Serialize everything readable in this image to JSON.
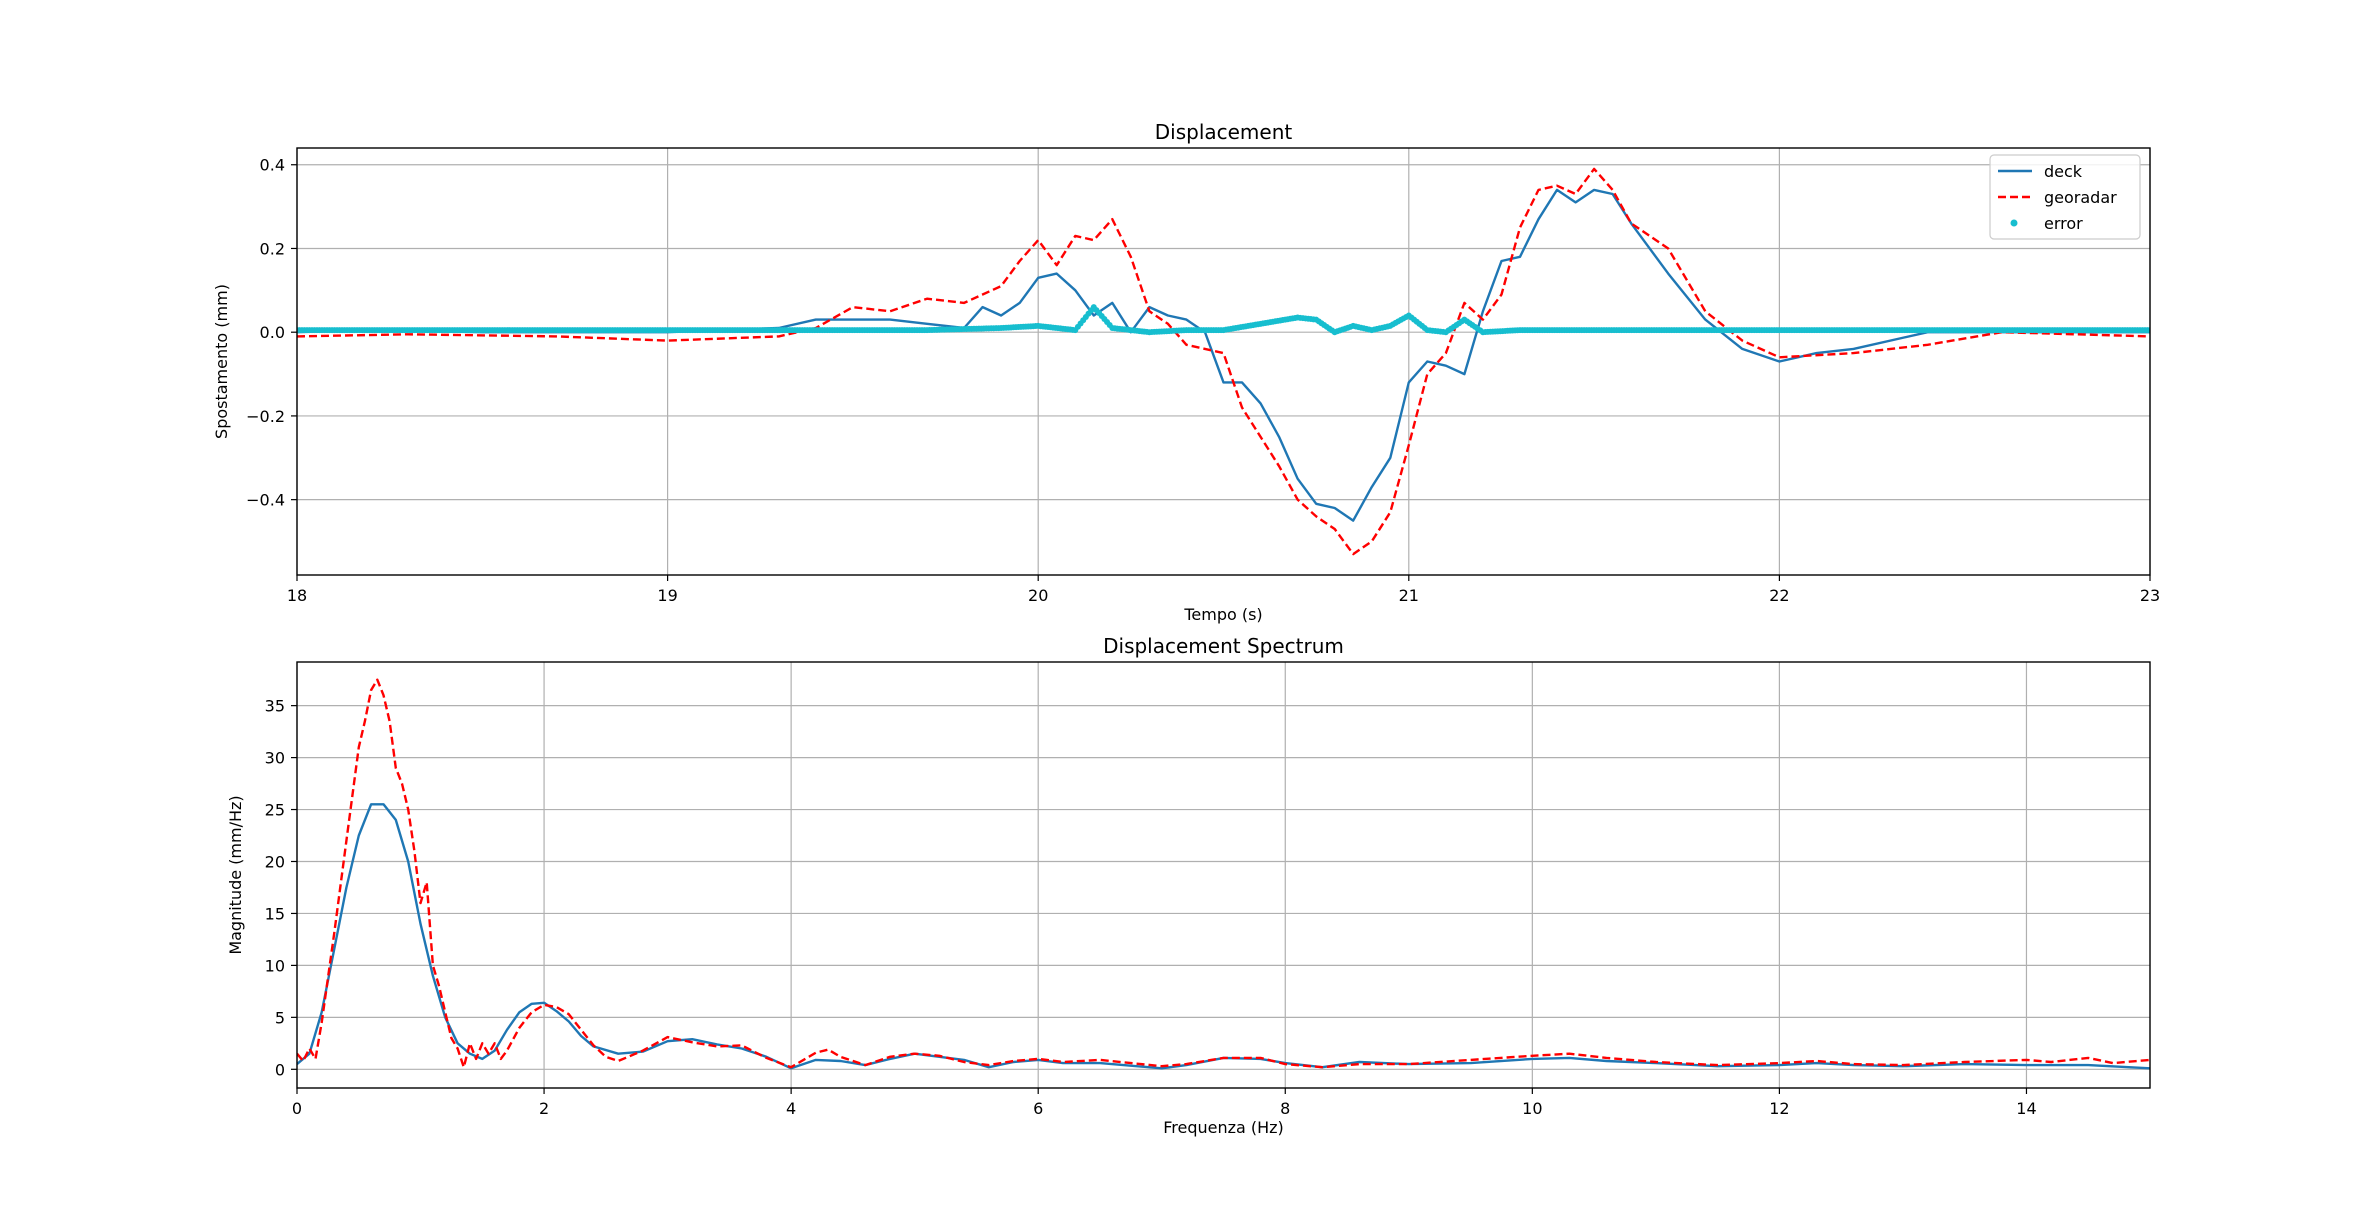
{
  "colors": {
    "deck": "#1f77b4",
    "georadar": "#ff0000",
    "error": "#17becf",
    "grid": "#b0b0b0"
  },
  "chart_data": [
    {
      "type": "line",
      "title": "Displacement",
      "xlabel": "Tempo (s)",
      "ylabel": "Spostamento (mm)",
      "xlim": [
        18,
        23
      ],
      "ylim": [
        -0.58,
        0.44
      ],
      "xticks": [
        18,
        19,
        20,
        21,
        22,
        23
      ],
      "xtick_labels": [
        "18",
        "19",
        "20",
        "21",
        "22",
        "23"
      ],
      "yticks": [
        -0.4,
        -0.2,
        0.0,
        0.2,
        0.4
      ],
      "ytick_labels": [
        "−0.4",
        "−0.2",
        "0.0",
        "0.2",
        "0.4"
      ],
      "grid": true,
      "legend_position": "top-right",
      "series": [
        {
          "name": "deck",
          "style": "solid",
          "x": [
            18.0,
            18.2,
            18.5,
            19.0,
            19.3,
            19.4,
            19.5,
            19.6,
            19.7,
            19.8,
            19.85,
            19.9,
            19.95,
            20.0,
            20.05,
            20.1,
            20.15,
            20.2,
            20.25,
            20.3,
            20.35,
            20.4,
            20.45,
            20.5,
            20.55,
            20.6,
            20.65,
            20.7,
            20.75,
            20.8,
            20.85,
            20.9,
            20.95,
            21.0,
            21.05,
            21.1,
            21.15,
            21.2,
            21.25,
            21.3,
            21.35,
            21.4,
            21.45,
            21.5,
            21.55,
            21.6,
            21.7,
            21.8,
            21.9,
            22.0,
            22.1,
            22.2,
            22.4,
            22.6,
            23.0
          ],
          "y": [
            0.0,
            0.005,
            0.0,
            0.0,
            0.01,
            0.03,
            0.03,
            0.03,
            0.02,
            0.01,
            0.06,
            0.04,
            0.07,
            0.13,
            0.14,
            0.1,
            0.04,
            0.07,
            0.0,
            0.06,
            0.04,
            0.03,
            0.0,
            -0.12,
            -0.12,
            -0.17,
            -0.25,
            -0.35,
            -0.41,
            -0.42,
            -0.45,
            -0.37,
            -0.3,
            -0.12,
            -0.07,
            -0.08,
            -0.1,
            0.05,
            0.17,
            0.18,
            0.27,
            0.34,
            0.31,
            0.34,
            0.33,
            0.26,
            0.14,
            0.03,
            -0.04,
            -0.07,
            -0.05,
            -0.04,
            0.0,
            0.0,
            0.0
          ]
        },
        {
          "name": "georadar",
          "style": "dashed",
          "x": [
            18.0,
            18.3,
            18.7,
            19.0,
            19.3,
            19.4,
            19.5,
            19.6,
            19.7,
            19.8,
            19.9,
            19.95,
            20.0,
            20.05,
            20.1,
            20.15,
            20.2,
            20.25,
            20.3,
            20.35,
            20.4,
            20.45,
            20.5,
            20.55,
            20.6,
            20.65,
            20.7,
            20.75,
            20.8,
            20.85,
            20.9,
            20.95,
            21.0,
            21.05,
            21.1,
            21.15,
            21.2,
            21.25,
            21.3,
            21.35,
            21.4,
            21.45,
            21.5,
            21.55,
            21.6,
            21.7,
            21.8,
            21.9,
            22.0,
            22.2,
            22.4,
            22.6,
            23.0
          ],
          "y": [
            -0.01,
            -0.005,
            -0.01,
            -0.02,
            -0.01,
            0.01,
            0.06,
            0.05,
            0.08,
            0.07,
            0.11,
            0.17,
            0.22,
            0.16,
            0.23,
            0.22,
            0.27,
            0.18,
            0.05,
            0.02,
            -0.03,
            -0.04,
            -0.05,
            -0.18,
            -0.25,
            -0.32,
            -0.4,
            -0.44,
            -0.47,
            -0.53,
            -0.5,
            -0.43,
            -0.27,
            -0.1,
            -0.05,
            0.07,
            0.03,
            0.09,
            0.25,
            0.34,
            0.35,
            0.33,
            0.39,
            0.34,
            0.26,
            0.2,
            0.05,
            -0.02,
            -0.06,
            -0.05,
            -0.03,
            0.0,
            -0.01
          ]
        },
        {
          "name": "error",
          "style": "dots",
          "x": [
            18.0,
            19.0,
            19.7,
            19.9,
            20.0,
            20.1,
            20.15,
            20.2,
            20.3,
            20.4,
            20.5,
            20.6,
            20.7,
            20.75,
            20.8,
            20.85,
            20.9,
            20.95,
            21.0,
            21.05,
            21.1,
            21.15,
            21.2,
            21.3,
            21.5,
            22.0,
            23.0
          ],
          "y": [
            0.005,
            0.005,
            0.005,
            0.01,
            0.015,
            0.005,
            0.06,
            0.01,
            0.0,
            0.005,
            0.005,
            0.02,
            0.035,
            0.03,
            0.0,
            0.015,
            0.005,
            0.015,
            0.04,
            0.005,
            0.0,
            0.03,
            0.0,
            0.005,
            0.005,
            0.005,
            0.005
          ]
        }
      ]
    },
    {
      "type": "line",
      "title": "Displacement Spectrum",
      "xlabel": "Frequenza (Hz)",
      "ylabel": "Magnitude (mm/Hz)",
      "xlim": [
        0,
        15
      ],
      "ylim": [
        -1.8,
        39.2
      ],
      "xticks": [
        0,
        2,
        4,
        6,
        8,
        10,
        12,
        14
      ],
      "xtick_labels": [
        "0",
        "2",
        "4",
        "6",
        "8",
        "10",
        "12",
        "14"
      ],
      "yticks": [
        0,
        5,
        10,
        15,
        20,
        25,
        30,
        35
      ],
      "ytick_labels": [
        "0",
        "5",
        "10",
        "15",
        "20",
        "25",
        "30",
        "35"
      ],
      "grid": true,
      "series": [
        {
          "name": "deck",
          "style": "solid",
          "x": [
            0.0,
            0.1,
            0.2,
            0.3,
            0.4,
            0.5,
            0.6,
            0.7,
            0.8,
            0.9,
            1.0,
            1.1,
            1.2,
            1.3,
            1.4,
            1.5,
            1.6,
            1.7,
            1.8,
            1.9,
            2.0,
            2.1,
            2.2,
            2.3,
            2.4,
            2.6,
            2.8,
            3.0,
            3.2,
            3.4,
            3.6,
            3.8,
            4.0,
            4.2,
            4.4,
            4.6,
            4.8,
            5.0,
            5.2,
            5.4,
            5.6,
            5.8,
            6.0,
            6.2,
            6.5,
            7.0,
            7.2,
            7.5,
            7.8,
            8.0,
            8.3,
            8.6,
            9.0,
            9.5,
            10.0,
            10.3,
            10.6,
            11.0,
            11.5,
            12.0,
            12.3,
            12.6,
            13.0,
            13.5,
            14.0,
            14.5,
            15.0
          ],
          "y": [
            0.5,
            1.5,
            5.5,
            11.5,
            17.5,
            22.5,
            25.5,
            25.5,
            24.0,
            20.0,
            14.0,
            9.0,
            5.0,
            2.5,
            1.5,
            1.0,
            1.8,
            3.8,
            5.5,
            6.3,
            6.4,
            5.6,
            4.6,
            3.2,
            2.2,
            1.5,
            1.7,
            2.7,
            2.9,
            2.4,
            2.0,
            1.2,
            0.1,
            0.9,
            0.8,
            0.4,
            1.0,
            1.5,
            1.2,
            0.9,
            0.2,
            0.7,
            0.9,
            0.6,
            0.6,
            0.1,
            0.4,
            1.1,
            1.0,
            0.6,
            0.2,
            0.7,
            0.5,
            0.6,
            1.0,
            1.1,
            0.8,
            0.6,
            0.3,
            0.4,
            0.6,
            0.4,
            0.3,
            0.5,
            0.4,
            0.4,
            0.1
          ]
        },
        {
          "name": "georadar",
          "style": "dashed",
          "x": [
            0.0,
            0.05,
            0.1,
            0.15,
            0.2,
            0.3,
            0.4,
            0.5,
            0.55,
            0.6,
            0.65,
            0.7,
            0.75,
            0.8,
            0.85,
            0.9,
            0.95,
            1.0,
            1.05,
            1.1,
            1.15,
            1.2,
            1.25,
            1.3,
            1.35,
            1.4,
            1.45,
            1.5,
            1.55,
            1.6,
            1.65,
            1.7,
            1.8,
            1.9,
            2.0,
            2.1,
            2.2,
            2.3,
            2.4,
            2.5,
            2.6,
            2.8,
            3.0,
            3.2,
            3.4,
            3.6,
            3.8,
            4.0,
            4.2,
            4.3,
            4.4,
            4.6,
            4.8,
            5.0,
            5.2,
            5.4,
            5.6,
            5.8,
            6.0,
            6.2,
            6.5,
            7.0,
            7.2,
            7.5,
            7.8,
            8.0,
            8.3,
            8.6,
            9.0,
            9.5,
            10.0,
            10.3,
            10.6,
            11.0,
            11.5,
            12.0,
            12.3,
            12.6,
            13.0,
            13.5,
            14.0,
            14.2,
            14.5,
            14.7,
            15.0
          ],
          "y": [
            1.5,
            0.8,
            2.0,
            1.0,
            4.5,
            13.0,
            22.0,
            31.0,
            33.5,
            36.5,
            37.5,
            36.0,
            33.5,
            29.0,
            27.5,
            25.0,
            21.0,
            16.0,
            18.0,
            10.0,
            8.0,
            5.5,
            3.0,
            2.0,
            0.2,
            2.5,
            1.0,
            2.5,
            1.5,
            2.5,
            1.0,
            1.8,
            4.0,
            5.5,
            6.2,
            6.0,
            5.3,
            3.8,
            2.3,
            1.2,
            0.8,
            1.8,
            3.1,
            2.6,
            2.2,
            2.3,
            1.1,
            0.2,
            1.6,
            1.9,
            1.2,
            0.4,
            1.2,
            1.5,
            1.3,
            0.7,
            0.4,
            0.8,
            1.0,
            0.7,
            0.9,
            0.3,
            0.5,
            1.1,
            1.1,
            0.5,
            0.2,
            0.5,
            0.5,
            0.9,
            1.3,
            1.5,
            1.1,
            0.7,
            0.4,
            0.6,
            0.8,
            0.5,
            0.4,
            0.7,
            0.9,
            0.7,
            1.1,
            0.6,
            0.9
          ]
        }
      ]
    }
  ]
}
